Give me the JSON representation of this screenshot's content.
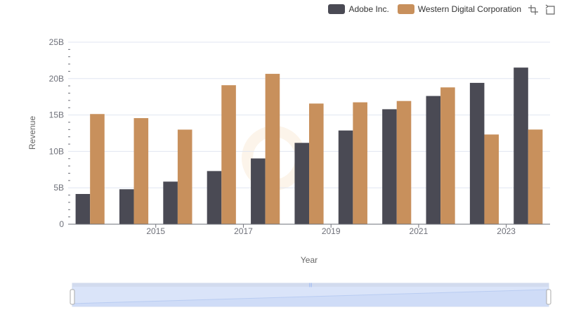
{
  "legend": [
    {
      "label": "Adobe Inc.",
      "color": "#4a4a54"
    },
    {
      "label": "Western Digital Corporation",
      "color": "#c8905c"
    }
  ],
  "toolbox": {
    "zoom_icon": "data-zoom-icon",
    "restore_icon": "restore-icon"
  },
  "chart_data": {
    "type": "bar",
    "title": "",
    "xlabel": "Year",
    "ylabel": "Revenue",
    "x": [
      2014,
      2015,
      2016,
      2017,
      2018,
      2019,
      2020,
      2021,
      2022,
      2023,
      2024
    ],
    "x_tick_labels": [
      "2015",
      "2017",
      "2019",
      "2021",
      "2023"
    ],
    "y_tick_labels": [
      "0",
      "5B",
      "10B",
      "15B",
      "20B",
      "25B"
    ],
    "ylim": [
      0,
      25000000000
    ],
    "grid": "horizontal",
    "legend_position": "top-right",
    "series": [
      {
        "name": "Adobe Inc.",
        "color": "#4a4a54",
        "values": [
          4150000000,
          4800000000,
          5850000000,
          7300000000,
          9030000000,
          11170000000,
          12870000000,
          15790000000,
          17610000000,
          19410000000,
          21510000000
        ]
      },
      {
        "name": "Western Digital Corporation",
        "color": "#c8905c",
        "values": [
          15130000000,
          14570000000,
          12990000000,
          19090000000,
          20650000000,
          16570000000,
          16740000000,
          16920000000,
          18790000000,
          12320000000,
          13000000000
        ]
      }
    ]
  },
  "data_zoom": {
    "start_percent": 0,
    "end_percent": 100
  }
}
